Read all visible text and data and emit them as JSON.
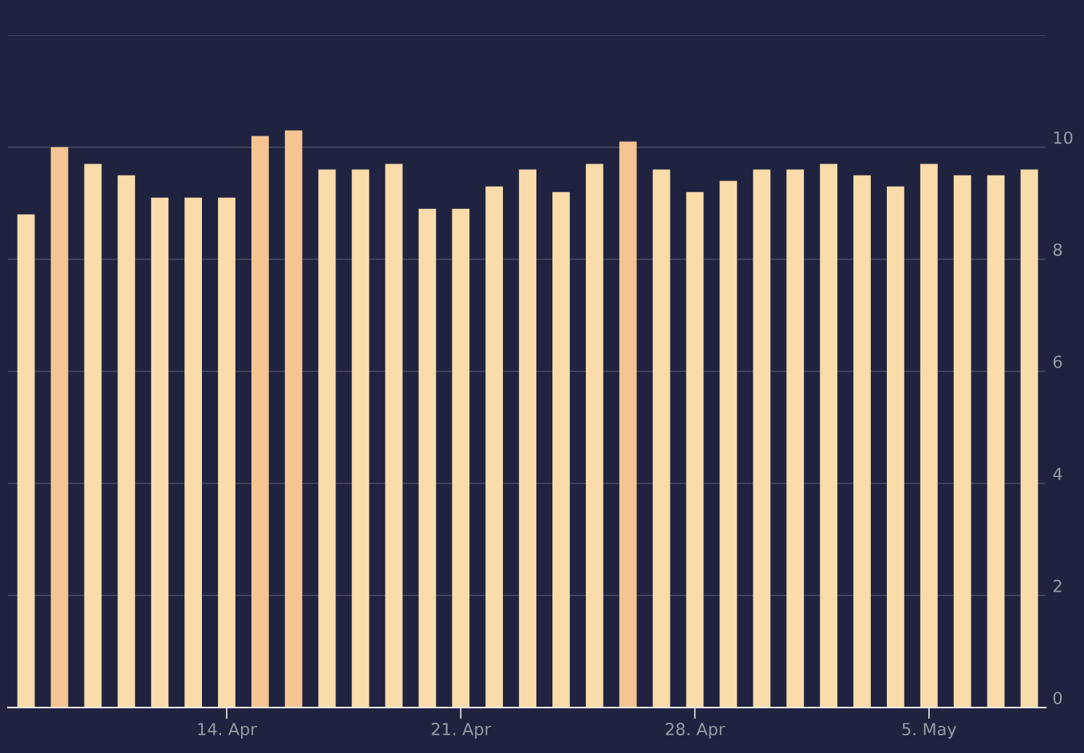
{
  "chart_data": {
    "type": "bar",
    "categories": [
      null,
      null,
      null,
      null,
      null,
      null,
      "14. Apr",
      null,
      null,
      null,
      null,
      null,
      null,
      "21. Apr",
      null,
      null,
      null,
      null,
      null,
      null,
      "28. Apr",
      null,
      null,
      null,
      null,
      null,
      null,
      "5. May",
      null,
      null,
      null
    ],
    "values": [
      8.8,
      10.0,
      9.7,
      9.5,
      9.1,
      9.1,
      9.1,
      10.2,
      10.3,
      9.6,
      9.6,
      9.7,
      8.9,
      8.9,
      9.3,
      9.6,
      9.2,
      9.7,
      10.1,
      9.6,
      9.2,
      9.4,
      9.6,
      9.6,
      9.7,
      9.5,
      9.3,
      9.7,
      9.5,
      9.5,
      9.6
    ],
    "colors": [
      "#fadcaa",
      "#f4c592",
      "#fadcaa",
      "#fadcaa",
      "#fadcaa",
      "#fadcaa",
      "#fadcaa",
      "#f4c592",
      "#f4c592",
      "#fadcaa",
      "#fadcaa",
      "#fadcaa",
      "#fadcaa",
      "#fadcaa",
      "#fadcaa",
      "#fadcaa",
      "#fadcaa",
      "#fadcaa",
      "#f4c592",
      "#fadcaa",
      "#fadcaa",
      "#fadcaa",
      "#fadcaa",
      "#fadcaa",
      "#fadcaa",
      "#fadcaa",
      "#fadcaa",
      "#fadcaa",
      "#fadcaa",
      "#fadcaa",
      "#fadcaa"
    ],
    "ylim": [
      0,
      12
    ],
    "yticks": [
      0,
      2,
      4,
      6,
      8,
      10,
      {
        "value": 12,
        "label": null
      }
    ],
    "grid": "y"
  }
}
